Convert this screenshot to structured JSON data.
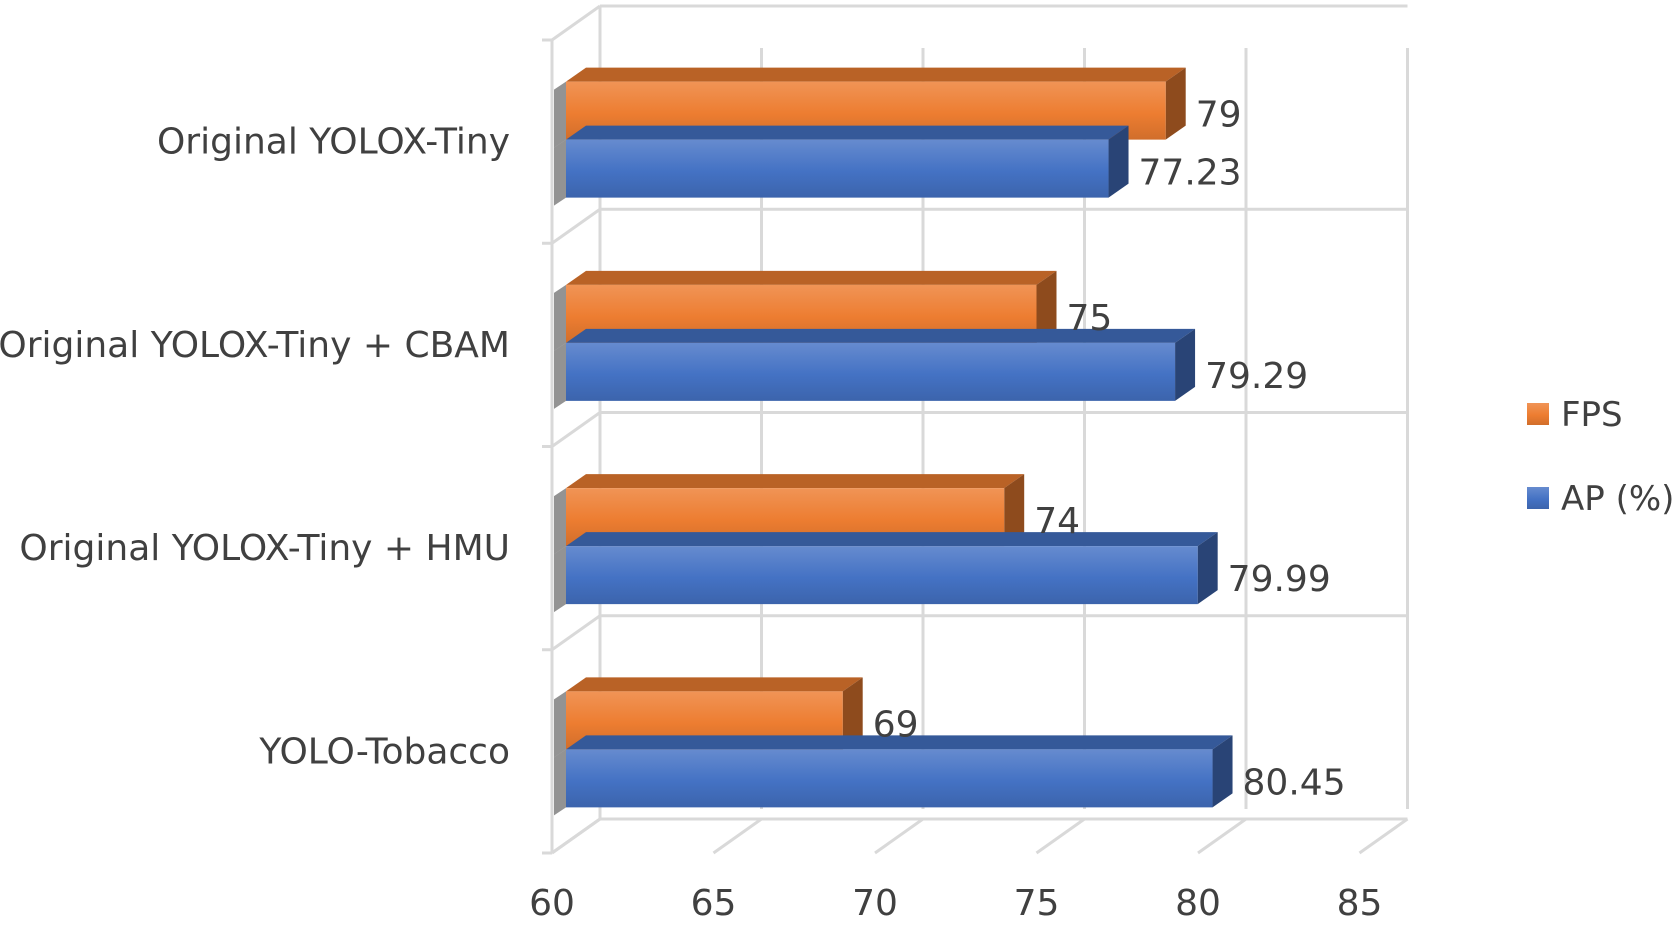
{
  "chart_data": {
    "type": "bar",
    "orientation": "horizontal",
    "style": "3d-clustered",
    "title": "",
    "xlabel": "",
    "ylabel": "",
    "categories": [
      "Original YOLOX-Tiny",
      "Original YOLOX-Tiny + CBAM",
      "Original YOLOX-Tiny + HMU",
      "YOLO-Tobacco"
    ],
    "series": [
      {
        "name": "FPS",
        "values": [
          79,
          75,
          74,
          69
        ],
        "color": "#ED7D31"
      },
      {
        "name": "AP (%)",
        "values": [
          77.23,
          79.29,
          79.99,
          80.45
        ],
        "color": "#4472C4"
      }
    ],
    "value_labels": {
      "FPS": [
        "79",
        "75",
        "74",
        "69"
      ],
      "AP (%)": [
        "77.23",
        "79.29",
        "79.99",
        "80.45"
      ]
    },
    "xlim": [
      60,
      85
    ],
    "x_ticks": [
      "60",
      "65",
      "70",
      "75",
      "80",
      "85"
    ],
    "grid": true,
    "legend": {
      "position": "right"
    }
  }
}
